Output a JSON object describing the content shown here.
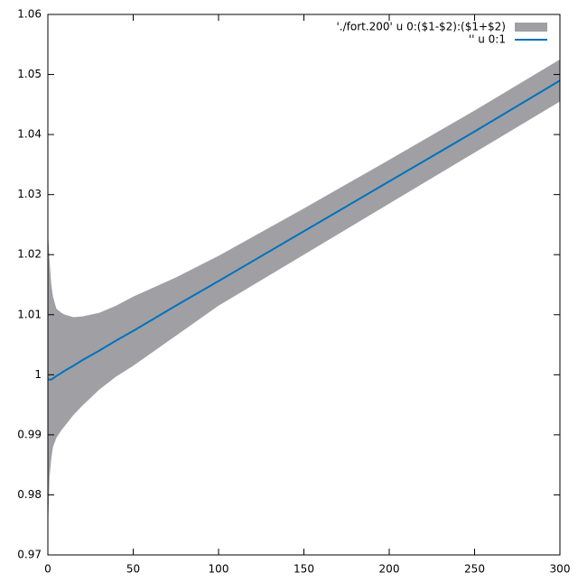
{
  "chart_data": {
    "type": "line",
    "x": [
      0,
      1,
      2,
      3,
      5,
      8,
      10,
      15,
      20,
      30,
      40,
      50,
      75,
      100,
      150,
      200,
      250,
      300
    ],
    "series": [
      {
        "name": "'./fort.200' u 0:($1-$2):($1+$2)",
        "color": "#a0a0a4",
        "lower": [
          0.974,
          0.983,
          0.986,
          0.988,
          0.9895,
          0.9908,
          0.9915,
          0.9933,
          0.9948,
          0.9975,
          0.9997,
          1.0015,
          1.0065,
          1.0115,
          1.02,
          1.0285,
          1.037,
          1.0455
        ],
        "upper": [
          1.024,
          1.019,
          1.015,
          1.013,
          1.011,
          1.0103,
          1.01,
          1.0096,
          1.0097,
          1.0103,
          1.0115,
          1.013,
          1.0162,
          1.0198,
          1.0277,
          1.0358,
          1.044,
          1.0525
        ]
      },
      {
        "name": "'' u 0:1",
        "color": "#0072bd",
        "values": [
          0.9992,
          0.9992,
          0.9992,
          0.9994,
          0.9998,
          1.0003,
          1.0007,
          1.0015,
          1.0024,
          1.004,
          1.0057,
          1.0073,
          1.0115,
          1.0156,
          1.0239,
          1.0322,
          1.0405,
          1.049
        ]
      }
    ],
    "xlim": [
      0,
      300
    ],
    "xticks": [
      0,
      50,
      100,
      150,
      200,
      250,
      300
    ],
    "ylim": [
      0.97,
      1.06
    ],
    "yticks": [
      0.97,
      0.98,
      0.99,
      1,
      1.01,
      1.02,
      1.03,
      1.04,
      1.05,
      1.06
    ],
    "grid": false,
    "legend": "top-right"
  }
}
